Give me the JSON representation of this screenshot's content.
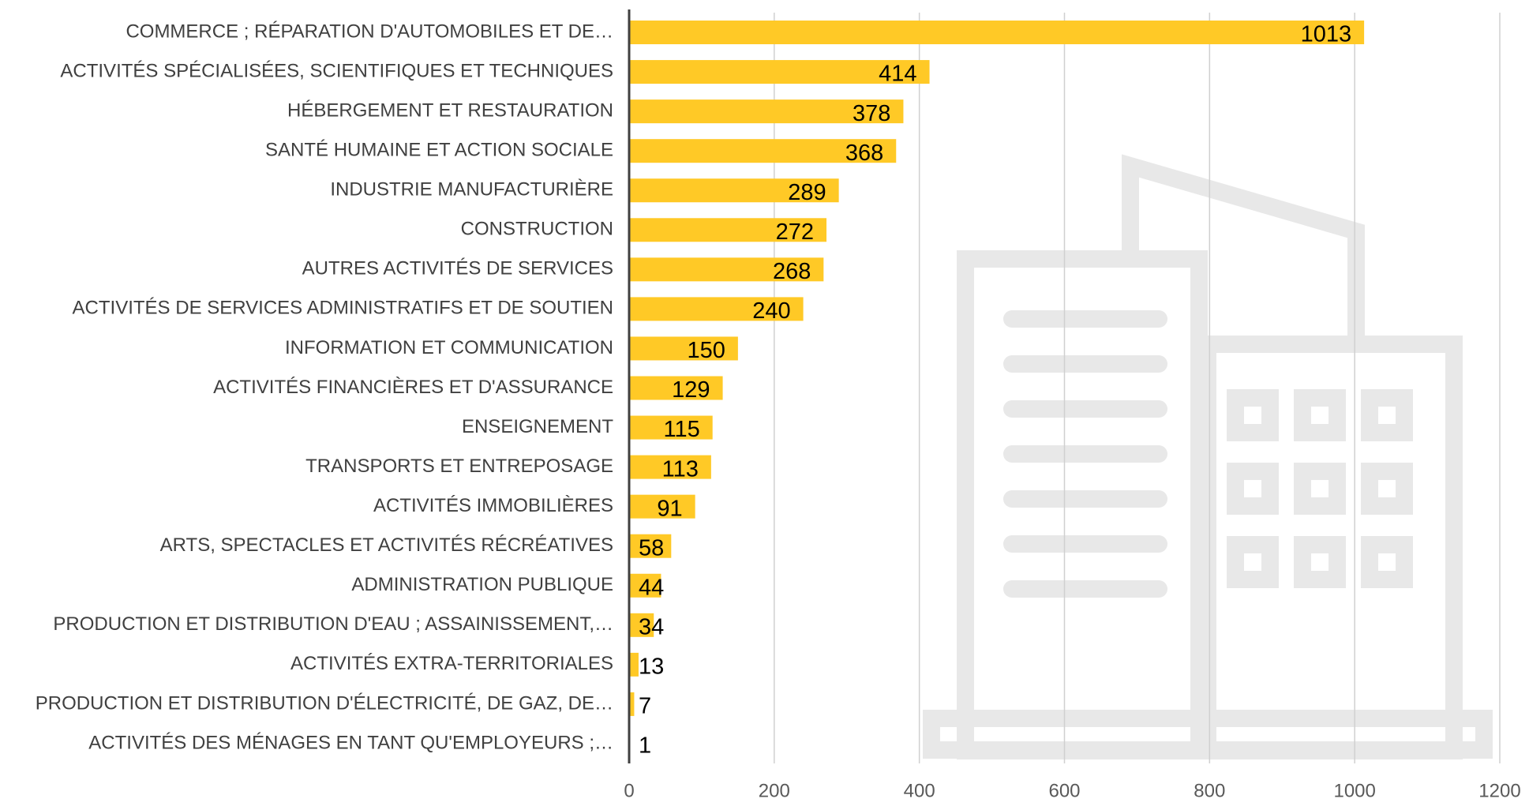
{
  "chart_data": {
    "type": "bar",
    "orientation": "horizontal",
    "categories": [
      "COMMERCE ; RÉPARATION D'AUTOMOBILES ET DE…",
      "ACTIVITÉS SPÉCIALISÉES, SCIENTIFIQUES ET TECHNIQUES",
      "HÉBERGEMENT ET RESTAURATION",
      "SANTÉ HUMAINE ET ACTION SOCIALE",
      "INDUSTRIE MANUFACTURIÈRE",
      "CONSTRUCTION",
      "AUTRES ACTIVITÉS DE SERVICES",
      "ACTIVITÉS DE SERVICES ADMINISTRATIFS ET DE SOUTIEN",
      "INFORMATION ET COMMUNICATION",
      "ACTIVITÉS FINANCIÈRES ET D'ASSURANCE",
      "ENSEIGNEMENT",
      "TRANSPORTS ET ENTREPOSAGE",
      "ACTIVITÉS IMMOBILIÈRES",
      "ARTS, SPECTACLES ET ACTIVITÉS RÉCRÉATIVES",
      "ADMINISTRATION PUBLIQUE",
      "PRODUCTION ET DISTRIBUTION D'EAU ; ASSAINISSEMENT,…",
      "ACTIVITÉS EXTRA-TERRITORIALES",
      "PRODUCTION ET DISTRIBUTION D'ÉLECTRICITÉ, DE GAZ, DE…",
      "ACTIVITÉS DES MÉNAGES EN TANT QU'EMPLOYEURS ;…"
    ],
    "values": [
      1013,
      414,
      378,
      368,
      289,
      272,
      268,
      240,
      150,
      129,
      115,
      113,
      91,
      58,
      44,
      34,
      13,
      7,
      1
    ],
    "color": "#ffc926",
    "xlim": [
      0,
      1200
    ],
    "xticks": [
      0,
      200,
      400,
      600,
      800,
      1000,
      1200
    ],
    "grid": true
  }
}
